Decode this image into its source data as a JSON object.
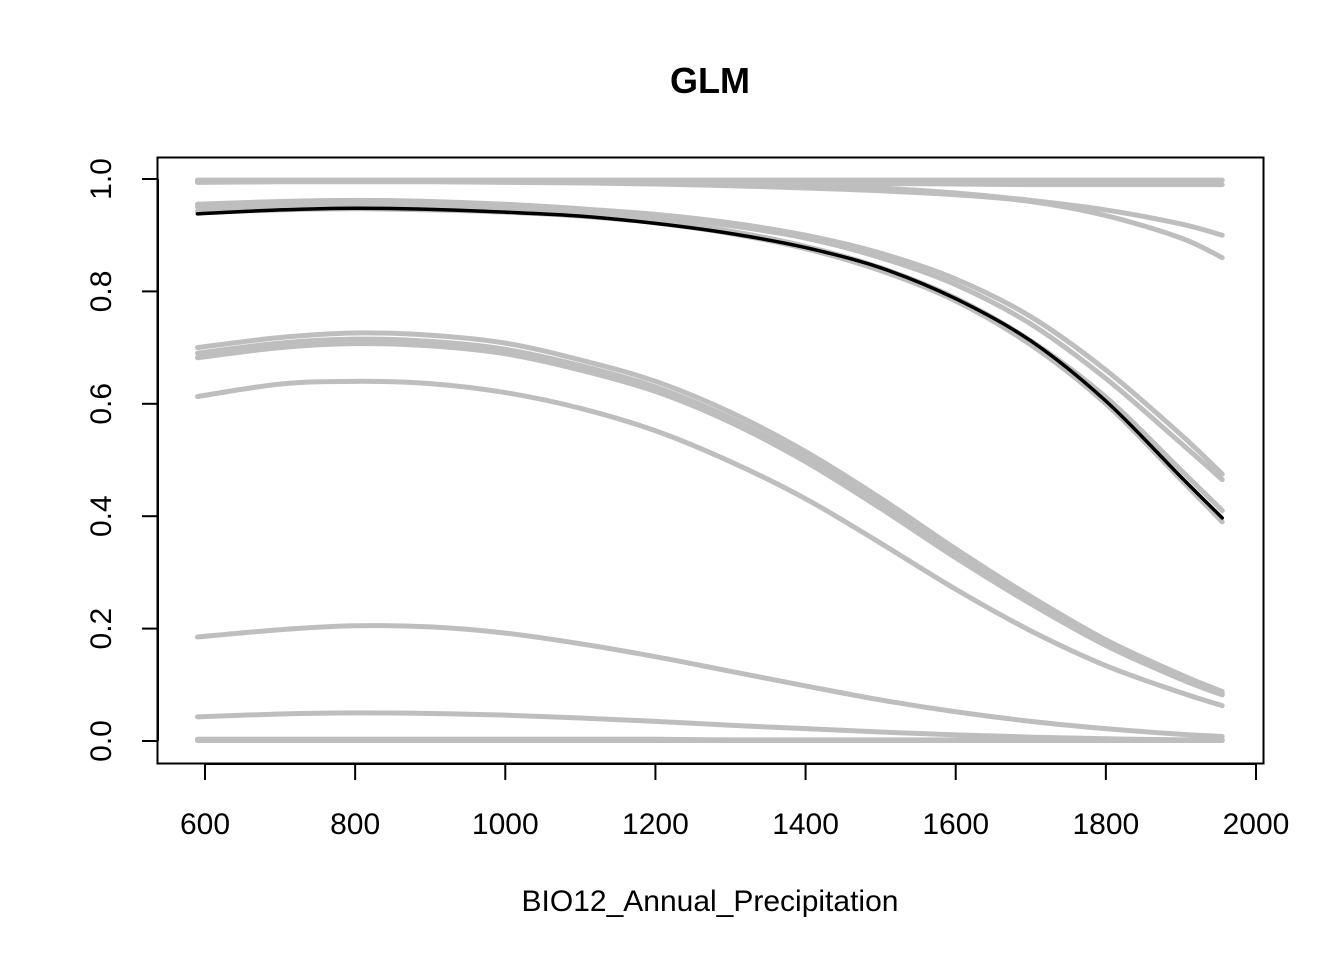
{
  "chart_data": {
    "type": "line",
    "title": "GLM",
    "xlabel": "BIO12_Annual_Precipitation",
    "ylabel": "",
    "xlim": [
      590,
      1955
    ],
    "ylim": [
      0.0,
      1.0
    ],
    "x_ticks": [
      600,
      800,
      1000,
      1200,
      1400,
      1600,
      1800,
      2000
    ],
    "y_ticks": [
      0.0,
      0.2,
      0.4,
      0.6,
      0.8,
      1.0
    ],
    "x_tick_labels": [
      "600",
      "800",
      "1000",
      "1200",
      "1400",
      "1600",
      "1800",
      "2000"
    ],
    "y_tick_labels": [
      "0.0",
      "0.2",
      "0.4",
      "0.6",
      "0.8",
      "1.0"
    ],
    "grid": false,
    "colors": {
      "replicate": "#bebebe",
      "mean": "#000000"
    },
    "x": [
      590,
      700,
      800,
      900,
      1000,
      1100,
      1200,
      1300,
      1400,
      1500,
      1600,
      1700,
      1800,
      1900,
      1955
    ],
    "series": [
      {
        "role": "replicate",
        "values": [
          0.998,
          0.998,
          0.998,
          0.998,
          0.998,
          0.998,
          0.998,
          0.998,
          0.998,
          0.998,
          0.998,
          0.998,
          0.998,
          0.998,
          0.998
        ]
      },
      {
        "role": "replicate",
        "values": [
          0.997,
          0.997,
          0.997,
          0.997,
          0.997,
          0.996,
          0.995,
          0.994,
          0.993,
          0.992,
          0.991,
          0.99,
          0.99,
          0.99,
          0.99
        ]
      },
      {
        "role": "replicate",
        "values": [
          0.995,
          0.996,
          0.996,
          0.996,
          0.995,
          0.995,
          0.994,
          0.992,
          0.989,
          0.984,
          0.975,
          0.962,
          0.945,
          0.92,
          0.9
        ]
      },
      {
        "role": "replicate",
        "values": [
          0.994,
          0.995,
          0.995,
          0.995,
          0.994,
          0.993,
          0.991,
          0.988,
          0.984,
          0.979,
          0.972,
          0.96,
          0.935,
          0.895,
          0.86
        ]
      },
      {
        "role": "replicate",
        "values": [
          0.955,
          0.96,
          0.962,
          0.96,
          0.955,
          0.947,
          0.937,
          0.922,
          0.9,
          0.868,
          0.822,
          0.755,
          0.66,
          0.545,
          0.475
        ]
      },
      {
        "role": "replicate",
        "values": [
          0.95,
          0.955,
          0.957,
          0.955,
          0.95,
          0.943,
          0.933,
          0.917,
          0.895,
          0.86,
          0.812,
          0.742,
          0.645,
          0.53,
          0.465
        ]
      },
      {
        "role": "replicate",
        "values": [
          0.943,
          0.948,
          0.95,
          0.948,
          0.944,
          0.937,
          0.925,
          0.907,
          0.88,
          0.842,
          0.788,
          0.712,
          0.612,
          0.482,
          0.41
        ]
      },
      {
        "role": "replicate",
        "values": [
          0.94,
          0.945,
          0.947,
          0.945,
          0.941,
          0.934,
          0.922,
          0.903,
          0.876,
          0.837,
          0.783,
          0.705,
          0.6,
          0.465,
          0.39
        ]
      },
      {
        "role": "replicate",
        "values": [
          0.7,
          0.718,
          0.726,
          0.722,
          0.708,
          0.678,
          0.64,
          0.585,
          0.515,
          0.432,
          0.342,
          0.257,
          0.18,
          0.118,
          0.088
        ]
      },
      {
        "role": "replicate",
        "values": [
          0.69,
          0.708,
          0.715,
          0.711,
          0.697,
          0.668,
          0.63,
          0.575,
          0.505,
          0.422,
          0.332,
          0.249,
          0.174,
          0.113,
          0.084
        ]
      },
      {
        "role": "replicate",
        "values": [
          0.682,
          0.7,
          0.707,
          0.703,
          0.689,
          0.66,
          0.622,
          0.567,
          0.497,
          0.414,
          0.326,
          0.244,
          0.17,
          0.11,
          0.082
        ]
      },
      {
        "role": "replicate",
        "values": [
          0.613,
          0.635,
          0.64,
          0.636,
          0.62,
          0.592,
          0.552,
          0.497,
          0.431,
          0.352,
          0.27,
          0.196,
          0.134,
          0.086,
          0.063
        ]
      },
      {
        "role": "replicate",
        "values": [
          0.185,
          0.198,
          0.205,
          0.203,
          0.192,
          0.173,
          0.15,
          0.124,
          0.098,
          0.073,
          0.052,
          0.035,
          0.022,
          0.012,
          0.008
        ]
      },
      {
        "role": "replicate",
        "values": [
          0.043,
          0.048,
          0.05,
          0.049,
          0.046,
          0.041,
          0.035,
          0.028,
          0.022,
          0.016,
          0.011,
          0.007,
          0.004,
          0.002,
          0.001
        ]
      },
      {
        "role": "replicate",
        "values": [
          0.003,
          0.003,
          0.003,
          0.003,
          0.003,
          0.003,
          0.003,
          0.002,
          0.002,
          0.002,
          0.002,
          0.002,
          0.002,
          0.002,
          0.002
        ]
      },
      {
        "role": "replicate",
        "values": [
          0.001,
          0.001,
          0.001,
          0.001,
          0.001,
          0.001,
          0.001,
          0.001,
          0.001,
          0.001,
          0.001,
          0.001,
          0.001,
          0.001,
          0.001
        ]
      },
      {
        "role": "mean",
        "values": [
          0.938,
          0.945,
          0.948,
          0.946,
          0.941,
          0.934,
          0.921,
          0.903,
          0.878,
          0.842,
          0.787,
          0.712,
          0.605,
          0.47,
          0.397
        ]
      }
    ]
  }
}
